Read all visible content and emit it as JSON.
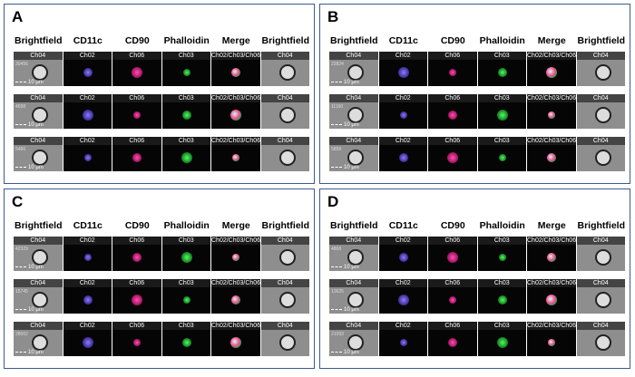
{
  "panels": [
    {
      "label": "A",
      "headers": [
        "Brightfield",
        "CD11c",
        "CD90",
        "Phalloidin",
        "Merge",
        "Brightfield"
      ],
      "rows": [
        {
          "id": "30456",
          "channels": [
            "Ch04",
            "Ch02",
            "Ch06",
            "Ch03",
            "Ch02/Ch03/Ch06",
            "Ch04"
          ],
          "scale": "10 µm"
        },
        {
          "id": "4698",
          "channels": [
            "Ch04",
            "Ch02",
            "Ch06",
            "Ch03",
            "Ch02/Ch03/Ch06",
            "Ch04"
          ],
          "scale": "10 µm"
        },
        {
          "id": "5486",
          "channels": [
            "Ch04",
            "Ch02",
            "Ch06",
            "Ch03",
            "Ch02/Ch03/Ch06",
            "Ch04"
          ],
          "scale": "10 µm"
        }
      ]
    },
    {
      "label": "B",
      "headers": [
        "Brightfield",
        "CD11c",
        "CD90",
        "Phalloidin",
        "Merge",
        "Brightfield"
      ],
      "rows": [
        {
          "id": "22824",
          "channels": [
            "Ch04",
            "Ch02",
            "Ch06",
            "Ch03",
            "Ch02/Ch03/Ch06",
            "Ch04"
          ],
          "scale": "10 µm"
        },
        {
          "id": "11160",
          "channels": [
            "Ch04",
            "Ch02",
            "Ch06",
            "Ch03",
            "Ch02/Ch03/Ch06",
            "Ch04"
          ],
          "scale": "10 µm"
        },
        {
          "id": "5858",
          "channels": [
            "Ch04",
            "Ch02",
            "Ch06",
            "Ch03",
            "Ch02/Ch03/Ch06",
            "Ch04"
          ],
          "scale": "10 µm"
        }
      ]
    },
    {
      "label": "C",
      "headers": [
        "Brightfield",
        "CD11c",
        "CD90",
        "Phalloidin",
        "Merge",
        "Brightfield"
      ],
      "rows": [
        {
          "id": "42329",
          "channels": [
            "Ch04",
            "Ch02",
            "Ch06",
            "Ch03",
            "Ch02/Ch03/Ch06",
            "Ch04"
          ],
          "scale": "10 µm"
        },
        {
          "id": "15745",
          "channels": [
            "Ch04",
            "Ch02",
            "Ch06",
            "Ch03",
            "Ch02/Ch03/Ch06",
            "Ch04"
          ],
          "scale": "10 µm"
        },
        {
          "id": "28002",
          "channels": [
            "Ch04",
            "Ch02",
            "Ch06",
            "Ch03",
            "Ch02/Ch03/Ch06",
            "Ch04"
          ],
          "scale": "10 µm"
        }
      ]
    },
    {
      "label": "D",
      "headers": [
        "Brightfield",
        "CD11c",
        "CD90",
        "Phalloidin",
        "Merge",
        "Brightfield"
      ],
      "rows": [
        {
          "id": "4868",
          "channels": [
            "Ch04",
            "Ch02",
            "Ch06",
            "Ch03",
            "Ch02/Ch03/Ch06",
            "Ch04"
          ],
          "scale": "10 µm"
        },
        {
          "id": "13625",
          "channels": [
            "Ch04",
            "Ch02",
            "Ch06",
            "Ch03",
            "Ch02/Ch03/Ch06",
            "Ch04"
          ],
          "scale": "10 µm"
        },
        {
          "id": "21093",
          "channels": [
            "Ch04",
            "Ch02",
            "Ch06",
            "Ch03",
            "Ch02/Ch03/Ch06",
            "Ch04"
          ],
          "scale": "10 µm"
        }
      ]
    }
  ]
}
